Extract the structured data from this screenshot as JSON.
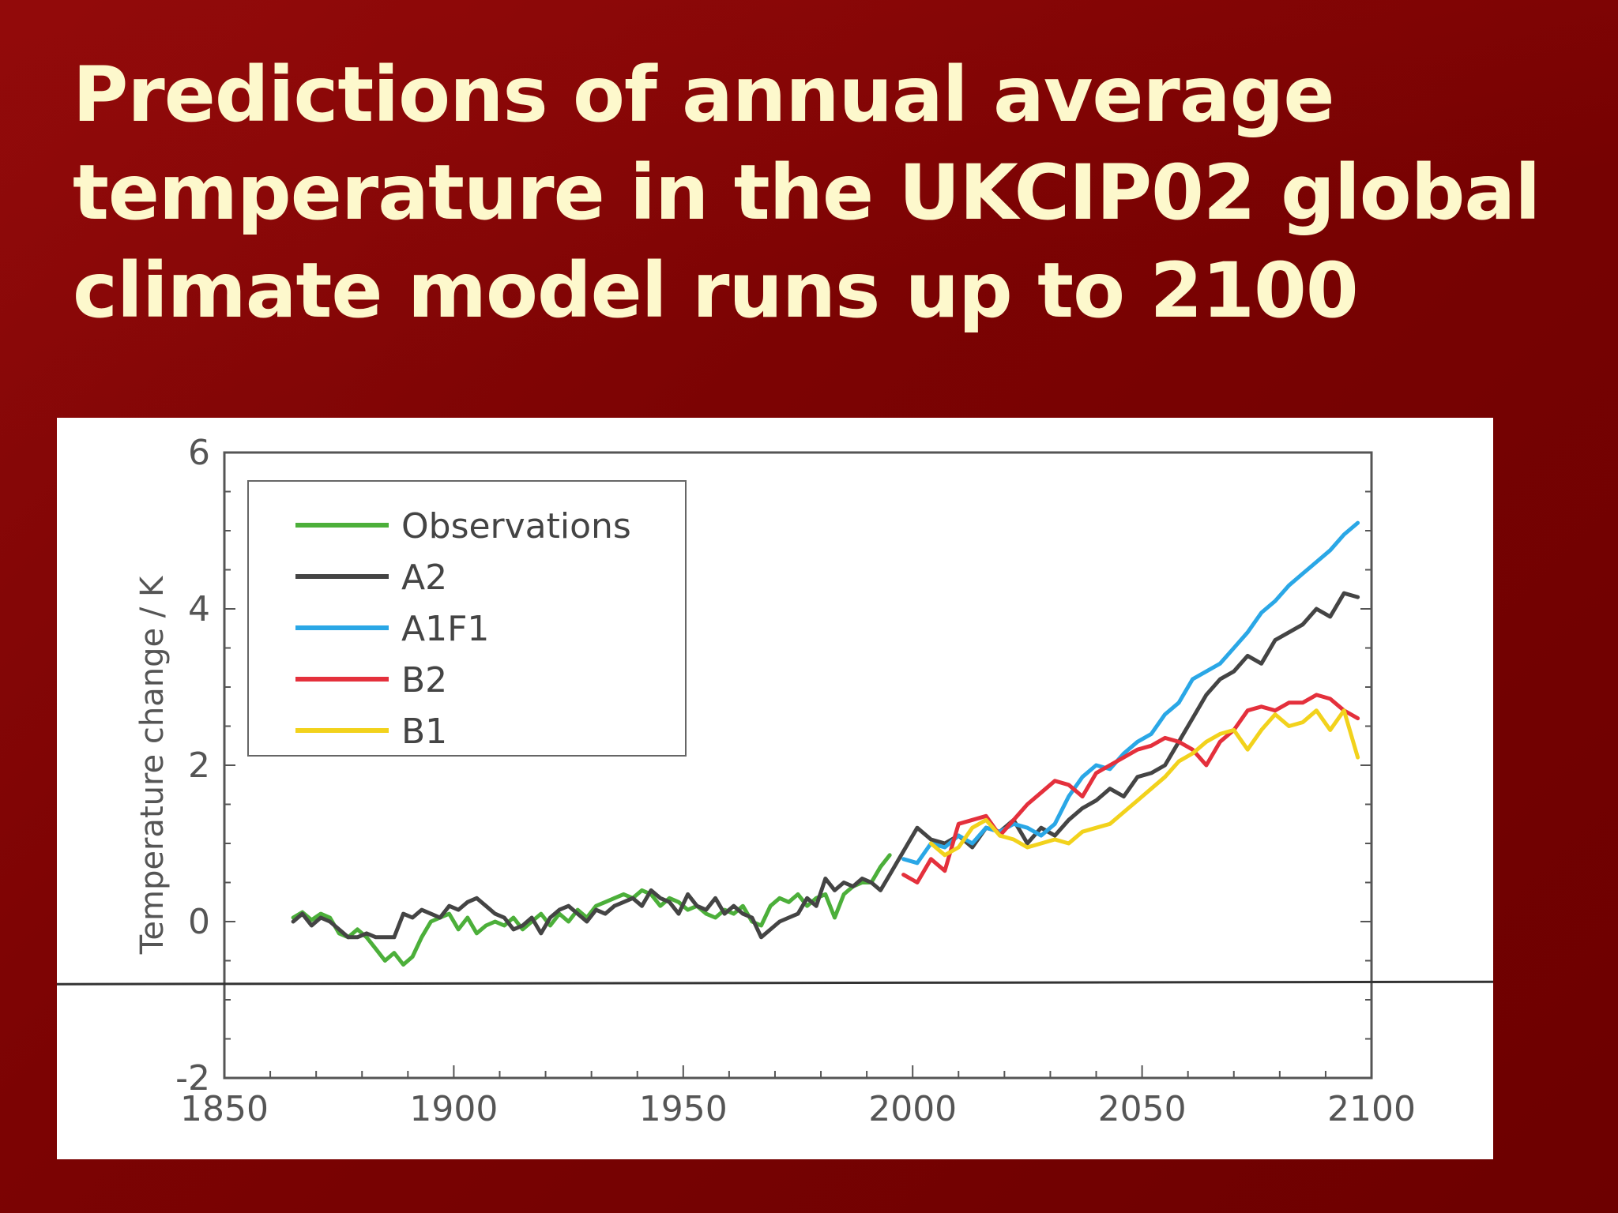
{
  "slide": {
    "title": "Predictions of annual average\ntemperature in the UKCIP02 global\nclimate model runs up to 2100",
    "background": "#7c0303",
    "title_color": "#fdf8cc"
  },
  "chart_data": {
    "type": "line",
    "title": "",
    "xlabel": "",
    "ylabel": "Temperature change / K",
    "xlim": [
      1850,
      2100
    ],
    "ylim": [
      -2,
      6
    ],
    "x_ticks": [
      "1850",
      "1900",
      "1950",
      "2000",
      "2050",
      "2100"
    ],
    "y_ticks": [
      "-2",
      "0",
      "2",
      "4",
      "6"
    ],
    "grid": false,
    "legend_position": "top-left",
    "reference_line_y": -0.8,
    "series": [
      {
        "name": "Observations",
        "color": "#4caf3a",
        "x": [
          1865,
          1867,
          1869,
          1871,
          1873,
          1875,
          1877,
          1879,
          1881,
          1883,
          1885,
          1887,
          1889,
          1891,
          1893,
          1895,
          1897,
          1899,
          1901,
          1903,
          1905,
          1907,
          1909,
          1911,
          1913,
          1915,
          1917,
          1919,
          1921,
          1923,
          1925,
          1927,
          1929,
          1931,
          1933,
          1935,
          1937,
          1939,
          1941,
          1943,
          1945,
          1947,
          1949,
          1951,
          1953,
          1955,
          1957,
          1959,
          1961,
          1963,
          1965,
          1967,
          1969,
          1971,
          1973,
          1975,
          1977,
          1979,
          1981,
          1983,
          1985,
          1987,
          1989,
          1991,
          1993,
          1995
        ],
        "y": [
          0.05,
          0.12,
          0.02,
          0.1,
          0.05,
          -0.15,
          -0.2,
          -0.1,
          -0.2,
          -0.35,
          -0.5,
          -0.4,
          -0.55,
          -0.45,
          -0.2,
          0.0,
          0.05,
          0.1,
          -0.1,
          0.05,
          -0.15,
          -0.05,
          0.0,
          -0.05,
          0.05,
          -0.1,
          0.0,
          0.1,
          -0.05,
          0.1,
          0.0,
          0.15,
          0.05,
          0.2,
          0.25,
          0.3,
          0.35,
          0.3,
          0.4,
          0.35,
          0.2,
          0.3,
          0.25,
          0.15,
          0.2,
          0.1,
          0.05,
          0.15,
          0.1,
          0.2,
          0.0,
          -0.05,
          0.2,
          0.3,
          0.25,
          0.35,
          0.2,
          0.3,
          0.35,
          0.05,
          0.35,
          0.45,
          0.5,
          0.5,
          0.7,
          0.85
        ]
      },
      {
        "name": "A2",
        "color": "#444444",
        "x": [
          1865,
          1867,
          1869,
          1871,
          1873,
          1875,
          1877,
          1879,
          1881,
          1883,
          1885,
          1887,
          1889,
          1891,
          1893,
          1895,
          1897,
          1899,
          1901,
          1903,
          1905,
          1907,
          1909,
          1911,
          1913,
          1915,
          1917,
          1919,
          1921,
          1923,
          1925,
          1927,
          1929,
          1931,
          1933,
          1935,
          1937,
          1939,
          1941,
          1943,
          1945,
          1947,
          1949,
          1951,
          1953,
          1955,
          1957,
          1959,
          1961,
          1963,
          1965,
          1967,
          1969,
          1971,
          1973,
          1975,
          1977,
          1979,
          1981,
          1983,
          1985,
          1987,
          1989,
          1991,
          1993,
          1995,
          1998,
          2001,
          2004,
          2007,
          2010,
          2013,
          2016,
          2019,
          2022,
          2025,
          2028,
          2031,
          2034,
          2037,
          2040,
          2043,
          2046,
          2049,
          2052,
          2055,
          2058,
          2061,
          2064,
          2067,
          2070,
          2073,
          2076,
          2079,
          2082,
          2085,
          2088,
          2091,
          2094,
          2097
        ],
        "y": [
          0.0,
          0.1,
          -0.05,
          0.05,
          0.0,
          -0.1,
          -0.2,
          -0.2,
          -0.15,
          -0.2,
          -0.2,
          -0.2,
          0.1,
          0.05,
          0.15,
          0.1,
          0.05,
          0.2,
          0.15,
          0.25,
          0.3,
          0.2,
          0.1,
          0.05,
          -0.1,
          -0.05,
          0.05,
          -0.15,
          0.05,
          0.15,
          0.2,
          0.1,
          0.0,
          0.15,
          0.1,
          0.2,
          0.25,
          0.3,
          0.2,
          0.4,
          0.3,
          0.25,
          0.1,
          0.35,
          0.2,
          0.15,
          0.3,
          0.1,
          0.2,
          0.1,
          0.05,
          -0.2,
          -0.1,
          0.0,
          0.05,
          0.1,
          0.3,
          0.2,
          0.55,
          0.4,
          0.5,
          0.45,
          0.55,
          0.5,
          0.4,
          0.6,
          0.9,
          1.2,
          1.05,
          1.0,
          1.1,
          0.95,
          1.2,
          1.15,
          1.3,
          1.0,
          1.2,
          1.1,
          1.3,
          1.45,
          1.55,
          1.7,
          1.6,
          1.85,
          1.9,
          2.0,
          2.3,
          2.6,
          2.9,
          3.1,
          3.2,
          3.4,
          3.3,
          3.6,
          3.7,
          3.8,
          4.0,
          3.9,
          4.2,
          4.15
        ]
      },
      {
        "name": "A1F1",
        "color": "#2aa7e6",
        "x": [
          1998,
          2001,
          2004,
          2007,
          2010,
          2013,
          2016,
          2019,
          2022,
          2025,
          2028,
          2031,
          2034,
          2037,
          2040,
          2043,
          2046,
          2049,
          2052,
          2055,
          2058,
          2061,
          2064,
          2067,
          2070,
          2073,
          2076,
          2079,
          2082,
          2085,
          2088,
          2091,
          2094,
          2097
        ],
        "y": [
          0.8,
          0.75,
          1.0,
          0.95,
          1.1,
          1.0,
          1.2,
          1.15,
          1.25,
          1.2,
          1.1,
          1.25,
          1.6,
          1.85,
          2.0,
          1.95,
          2.15,
          2.3,
          2.4,
          2.65,
          2.8,
          3.1,
          3.2,
          3.3,
          3.5,
          3.7,
          3.95,
          4.1,
          4.3,
          4.45,
          4.6,
          4.75,
          4.95,
          5.1
        ]
      },
      {
        "name": "B2",
        "color": "#e4303c",
        "x": [
          1998,
          2001,
          2004,
          2007,
          2010,
          2013,
          2016,
          2019,
          2022,
          2025,
          2028,
          2031,
          2034,
          2037,
          2040,
          2043,
          2046,
          2049,
          2052,
          2055,
          2058,
          2061,
          2064,
          2067,
          2070,
          2073,
          2076,
          2079,
          2082,
          2085,
          2088,
          2091,
          2094,
          2097
        ],
        "y": [
          0.6,
          0.5,
          0.8,
          0.65,
          1.25,
          1.3,
          1.35,
          1.1,
          1.3,
          1.5,
          1.65,
          1.8,
          1.75,
          1.6,
          1.9,
          2.0,
          2.1,
          2.2,
          2.25,
          2.35,
          2.3,
          2.2,
          2.0,
          2.3,
          2.45,
          2.7,
          2.75,
          2.7,
          2.8,
          2.8,
          2.9,
          2.85,
          2.7,
          2.6
        ]
      },
      {
        "name": "B1",
        "color": "#f2d21c",
        "x": [
          2004,
          2007,
          2010,
          2013,
          2016,
          2019,
          2022,
          2025,
          2028,
          2031,
          2034,
          2037,
          2040,
          2043,
          2046,
          2049,
          2052,
          2055,
          2058,
          2061,
          2064,
          2067,
          2070,
          2073,
          2076,
          2079,
          2082,
          2085,
          2088,
          2091,
          2094,
          2097
        ],
        "y": [
          1.0,
          0.85,
          0.95,
          1.2,
          1.3,
          1.1,
          1.05,
          0.95,
          1.0,
          1.05,
          1.0,
          1.15,
          1.2,
          1.25,
          1.4,
          1.55,
          1.7,
          1.85,
          2.05,
          2.15,
          2.3,
          2.4,
          2.45,
          2.2,
          2.45,
          2.65,
          2.5,
          2.55,
          2.7,
          2.45,
          2.7,
          2.1
        ]
      }
    ]
  }
}
